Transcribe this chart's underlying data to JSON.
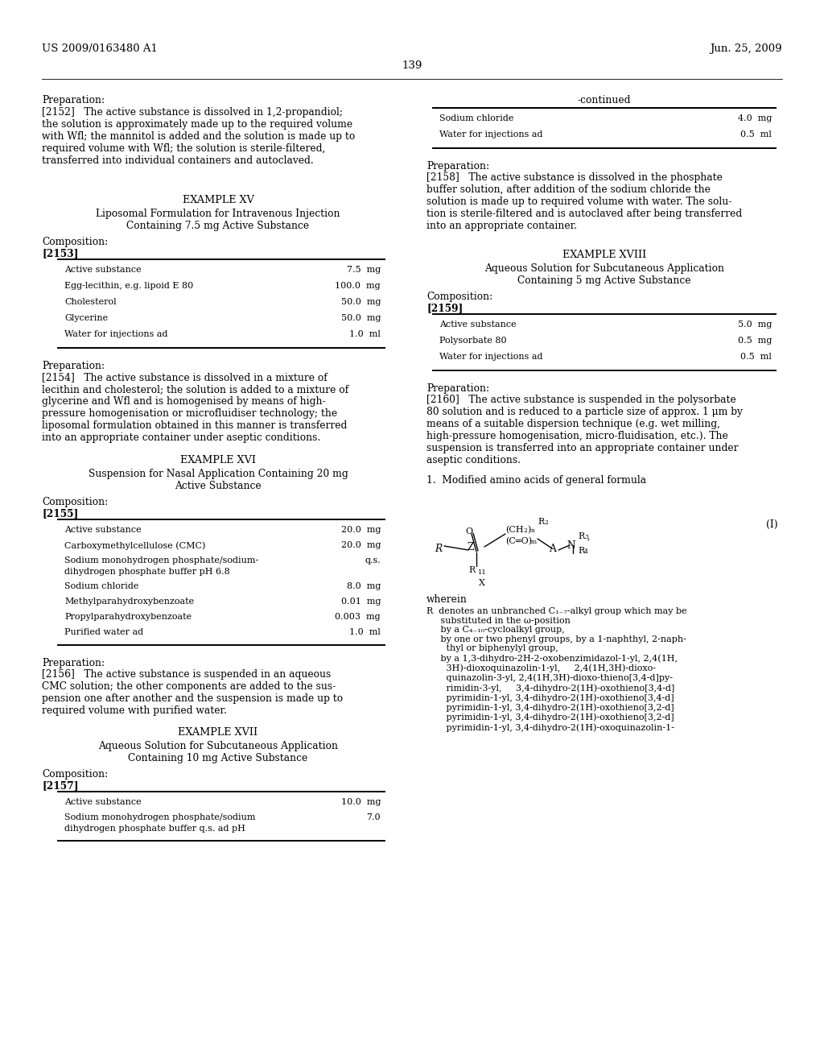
{
  "header_left": "US 2009/0163480 A1",
  "header_right": "Jun. 25, 2009",
  "page_number": "139",
  "bg_color": "#ffffff",
  "text_color": "#000000"
}
